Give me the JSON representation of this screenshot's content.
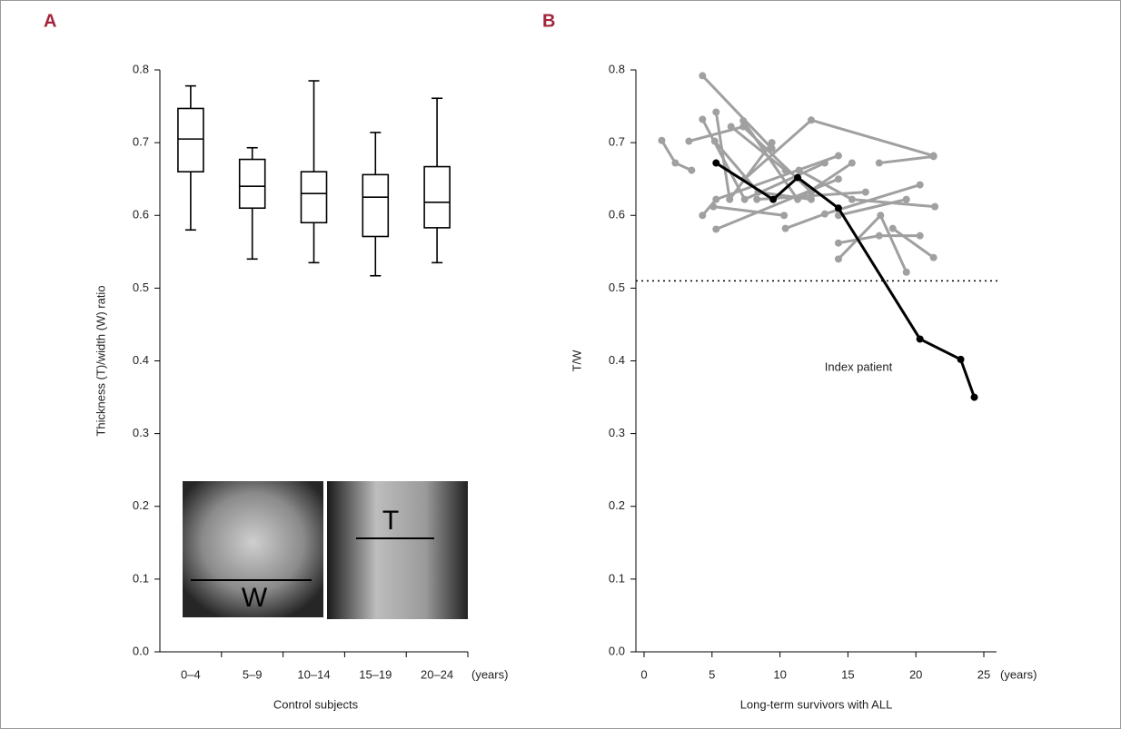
{
  "chart_data": [
    {
      "type": "box",
      "panel": "A",
      "y_label": "Thickness (T)/width (W) ratio",
      "x_label": "Control subjects",
      "x_unit": "(years)",
      "categories": [
        "0–4",
        "5–9",
        "10–14",
        "15–19",
        "20–24"
      ],
      "boxes": [
        {
          "min": 0.58,
          "q1": 0.66,
          "median": 0.705,
          "q3": 0.747,
          "max": 0.778
        },
        {
          "min": 0.54,
          "q1": 0.61,
          "median": 0.64,
          "q3": 0.677,
          "max": 0.693
        },
        {
          "min": 0.535,
          "q1": 0.59,
          "median": 0.63,
          "q3": 0.66,
          "max": 0.785
        },
        {
          "min": 0.517,
          "q1": 0.571,
          "median": 0.625,
          "q3": 0.656,
          "max": 0.714
        },
        {
          "min": 0.535,
          "q1": 0.583,
          "median": 0.618,
          "q3": 0.667,
          "max": 0.761
        }
      ],
      "color": "#000000",
      "ylim": [
        0,
        0.8
      ],
      "yticks": [
        {
          "value": 0,
          "label": "0.0"
        },
        0.1,
        0.2,
        0.3,
        0.4,
        0.5,
        0.6,
        0.7,
        0.8
      ],
      "inset_labels": [
        "W",
        "T"
      ]
    },
    {
      "type": "line",
      "panel": "B",
      "y_label": "T/W",
      "x_label": "Long-term survivors with ALL",
      "x_unit": "(years)",
      "xlim": [
        0,
        25
      ],
      "xticks": [
        0,
        5,
        10,
        15,
        20,
        25
      ],
      "ylim": [
        0,
        0.8
      ],
      "yticks": [
        {
          "value": 0,
          "label": "0.0"
        },
        0.1,
        0.2,
        0.3,
        0.4,
        0.5,
        0.6,
        0.7,
        0.8
      ],
      "reference_line": 0.51,
      "series": [
        {
          "color": "#a0a0a0",
          "x": [
            1.3,
            2.3,
            3.5
          ],
          "values": [
            0.703,
            0.672,
            0.662
          ]
        },
        {
          "color": "#a0a0a0",
          "x": [
            3.3,
            7.3,
            12.3
          ],
          "values": [
            0.702,
            0.722,
            0.632
          ]
        },
        {
          "color": "#a0a0a0",
          "x": [
            4.3,
            9.4
          ],
          "values": [
            0.792,
            0.692
          ]
        },
        {
          "color": "#a0a0a0",
          "x": [
            4.3,
            7.4,
            13.3
          ],
          "values": [
            0.732,
            0.622,
            0.672
          ]
        },
        {
          "color": "#a0a0a0",
          "x": [
            4.3,
            5.3,
            14.3
          ],
          "values": [
            0.6,
            0.622,
            0.682
          ]
        },
        {
          "color": "#a0a0a0",
          "x": [
            5.3,
            6.3,
            9.4
          ],
          "values": [
            0.742,
            0.622,
            0.7
          ]
        },
        {
          "color": "#a0a0a0",
          "x": [
            5.3,
            14.3
          ],
          "values": [
            0.581,
            0.65
          ]
        },
        {
          "color": "#a0a0a0",
          "x": [
            5.1,
            10.3
          ],
          "values": [
            0.612,
            0.6
          ]
        },
        {
          "color": "#a0a0a0",
          "x": [
            6.4,
            10.4
          ],
          "values": [
            0.722,
            0.662
          ]
        },
        {
          "color": "#a0a0a0",
          "x": [
            7.3,
            11.3,
            15.3
          ],
          "values": [
            0.73,
            0.622,
            0.672
          ]
        },
        {
          "color": "#a0a0a0",
          "x": [
            7.4,
            12.3,
            21.3
          ],
          "values": [
            0.65,
            0.731,
            0.682
          ]
        },
        {
          "color": "#a0a0a0",
          "x": [
            8.3,
            16.3
          ],
          "values": [
            0.622,
            0.632
          ]
        },
        {
          "color": "#a0a0a0",
          "x": [
            10.4,
            13.3,
            20.3
          ],
          "values": [
            0.582,
            0.602,
            0.642
          ]
        },
        {
          "color": "#a0a0a0",
          "x": [
            11.4,
            15.3,
            21.4
          ],
          "values": [
            0.662,
            0.622,
            0.612
          ]
        },
        {
          "color": "#a0a0a0",
          "x": [
            14.3,
            17.3,
            20.3
          ],
          "values": [
            0.562,
            0.572,
            0.572
          ]
        },
        {
          "color": "#a0a0a0",
          "x": [
            14.3,
            17.4,
            19.3
          ],
          "values": [
            0.54,
            0.6,
            0.522
          ]
        },
        {
          "color": "#a0a0a0",
          "x": [
            17.3,
            21.3
          ],
          "values": [
            0.672,
            0.681
          ]
        },
        {
          "color": "#a0a0a0",
          "x": [
            18.3,
            21.3
          ],
          "values": [
            0.582,
            0.542
          ]
        },
        {
          "color": "#a0a0a0",
          "x": [
            14.3,
            19.3
          ],
          "values": [
            0.6,
            0.622
          ]
        },
        {
          "color": "#a0a0a0",
          "x": [
            5.2,
            8.4,
            12.3
          ],
          "values": [
            0.702,
            0.632,
            0.622
          ]
        },
        {
          "name": "Index patient",
          "color": "#000000",
          "x": [
            5.3,
            9.5,
            11.3,
            14.3,
            20.3,
            23.3,
            24.3
          ],
          "values": [
            0.672,
            0.622,
            0.652,
            0.61,
            0.43,
            0.402,
            0.35
          ]
        }
      ]
    }
  ]
}
